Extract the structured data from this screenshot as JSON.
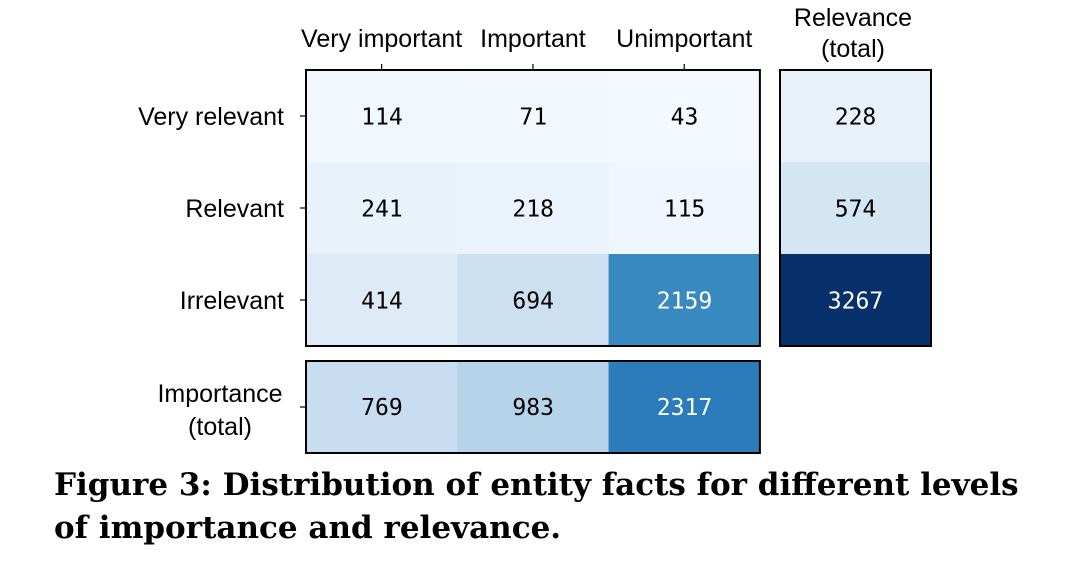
{
  "chart_data": {
    "type": "heatmap",
    "columns": [
      "Very important",
      "Important",
      "Unimportant"
    ],
    "rows": [
      "Very relevant",
      "Relevant",
      "Irrelevant"
    ],
    "values": [
      [
        114,
        71,
        43
      ],
      [
        241,
        218,
        115
      ],
      [
        414,
        694,
        2159
      ]
    ],
    "row_total_label": "Relevance (total)",
    "row_totals": [
      228,
      574,
      3267
    ],
    "col_total_label": "Importance (total)",
    "col_totals": [
      769,
      983,
      2317
    ],
    "colormap": "Blues",
    "color_range": [
      0,
      3267
    ]
  },
  "caption": "Figure 3: Distribution of entity facts for different levels of importance and relevance."
}
